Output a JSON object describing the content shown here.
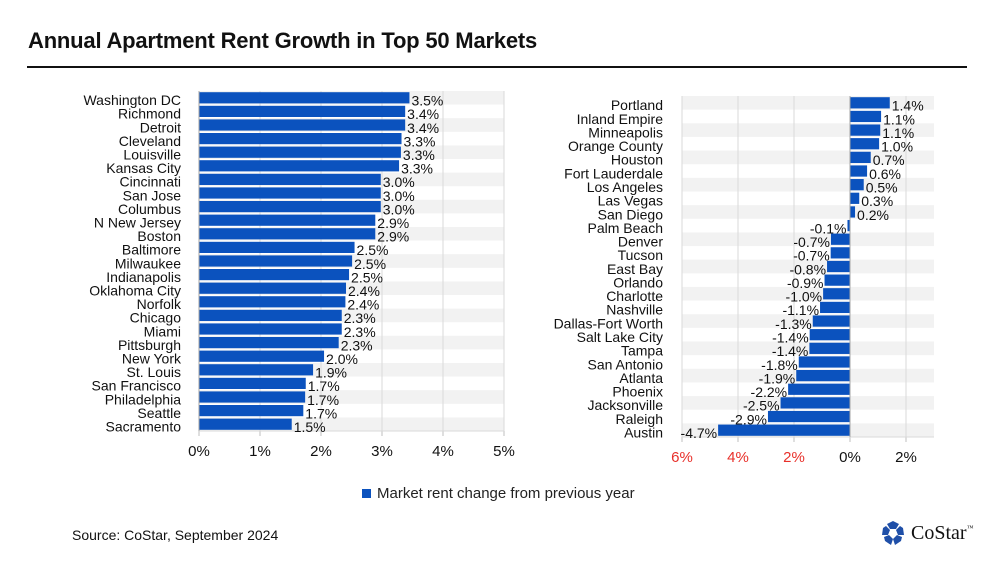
{
  "title": "Annual Apartment Rent Growth in Top 50 Markets",
  "legend": {
    "label": "Market rent change from previous year",
    "color": "#0B52BE"
  },
  "source": "Source: CoStar, September 2024",
  "logo": {
    "text": "CoStar",
    "tm": "™"
  },
  "colors": {
    "bar": "#0B52BE",
    "band": "#F2F2F2",
    "grid": "#D9D9D9",
    "negative_tick": "#E8302A"
  },
  "chart_data": [
    {
      "type": "bar",
      "orientation": "horizontal",
      "title": "",
      "xlabel": "",
      "ylabel": "",
      "xlim": [
        0,
        5
      ],
      "ticks": [
        0,
        1,
        2,
        3,
        4,
        5
      ],
      "tick_labels": [
        "0%",
        "1%",
        "2%",
        "3%",
        "4%",
        "5%"
      ],
      "tick_negative": [
        false,
        false,
        false,
        false,
        false,
        false
      ],
      "grid": true,
      "categories": [
        "Washington DC",
        "Richmond",
        "Detroit",
        "Cleveland",
        "Louisville",
        "Kansas City",
        "Cincinnati",
        "San Jose",
        "Columbus",
        "N New Jersey",
        "Boston",
        "Baltimore",
        "Milwaukee",
        "Indianapolis",
        "Oklahoma City",
        "Norfolk",
        "Chicago",
        "Miami",
        "Pittsburgh",
        "New York",
        "St. Louis",
        "San Francisco",
        "Philadelphia",
        "Seattle",
        "Sacramento"
      ],
      "values": [
        3.45,
        3.38,
        3.38,
        3.32,
        3.31,
        3.28,
        2.98,
        2.98,
        2.98,
        2.89,
        2.89,
        2.55,
        2.51,
        2.46,
        2.41,
        2.4,
        2.34,
        2.34,
        2.29,
        2.05,
        1.87,
        1.75,
        1.74,
        1.71,
        1.52
      ],
      "data_labels": [
        "3.5%",
        "3.4%",
        "3.4%",
        "3.3%",
        "3.3%",
        "3.3%",
        "3.0%",
        "3.0%",
        "3.0%",
        "2.9%",
        "2.9%",
        "2.5%",
        "2.5%",
        "2.5%",
        "2.4%",
        "2.4%",
        "2.3%",
        "2.3%",
        "2.3%",
        "2.0%",
        "1.9%",
        "1.7%",
        "1.7%",
        "1.7%",
        "1.5%"
      ]
    },
    {
      "type": "bar",
      "orientation": "horizontal",
      "title": "",
      "xlabel": "",
      "ylabel": "",
      "xlim": [
        -6,
        3
      ],
      "ticks": [
        -6,
        -4,
        -2,
        0,
        2
      ],
      "tick_labels": [
        "6%",
        "4%",
        "2%",
        "0%",
        "2%"
      ],
      "tick_negative": [
        true,
        true,
        true,
        false,
        false
      ],
      "grid": true,
      "categories": [
        "Portland",
        "Inland Empire",
        "Minneapolis",
        "Orange County",
        "Houston",
        "Fort Lauderdale",
        "Los Angeles",
        "Las Vegas",
        "San Diego",
        "Palm Beach",
        "Denver",
        "Tucson",
        "East Bay",
        "Orlando",
        "Charlotte",
        "Nashville",
        "Dallas-Fort Worth",
        "Salt Lake City",
        "Tampa",
        "San Antonio",
        "Atlanta",
        "Phoenix",
        "Jacksonville",
        "Raleigh",
        "Austin"
      ],
      "values": [
        1.42,
        1.11,
        1.08,
        1.04,
        0.74,
        0.61,
        0.49,
        0.33,
        0.18,
        -0.09,
        -0.68,
        -0.69,
        -0.82,
        -0.91,
        -0.96,
        -1.07,
        -1.33,
        -1.44,
        -1.45,
        -1.83,
        -1.92,
        -2.21,
        -2.48,
        -2.93,
        -4.71
      ],
      "data_labels": [
        "1.4%",
        "1.1%",
        "1.1%",
        "1.0%",
        "0.7%",
        "0.6%",
        "0.5%",
        "0.3%",
        "0.2%",
        "-0.1%",
        "-0.7%",
        "-0.7%",
        "-0.8%",
        "-0.9%",
        "-1.0%",
        "-1.1%",
        "-1.3%",
        "-1.4%",
        "-1.4%",
        "-1.8%",
        "-1.9%",
        "-2.2%",
        "-2.5%",
        "-2.9%",
        "-4.7%"
      ]
    }
  ]
}
